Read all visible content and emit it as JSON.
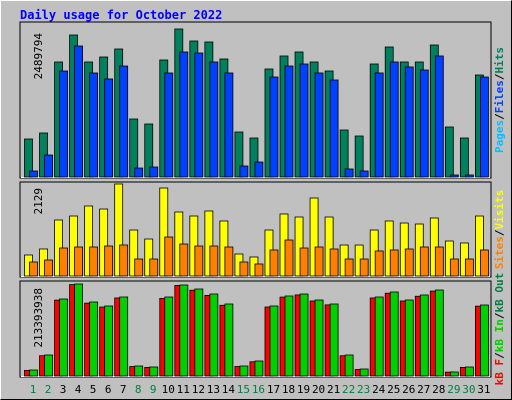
{
  "title": "Daily usage for October 2022",
  "categories": [
    "1",
    "2",
    "3",
    "4",
    "5",
    "6",
    "7",
    "8",
    "9",
    "10",
    "11",
    "12",
    "13",
    "14",
    "15",
    "16",
    "17",
    "18",
    "19",
    "20",
    "21",
    "22",
    "23",
    "24",
    "25",
    "26",
    "27",
    "28",
    "29",
    "30",
    "31"
  ],
  "weekend_categories": [
    "1",
    "2",
    "8",
    "9",
    "15",
    "16",
    "22",
    "23",
    "29",
    "30"
  ],
  "weekend_color": "#008040",
  "separator": "/",
  "chart_data": [
    {
      "type": "bar",
      "ylim": [
        0,
        2489794
      ],
      "series": [
        {
          "name": "Pages",
          "color": "#00c0ff"
        },
        {
          "name": "Files",
          "color": "#0040ff",
          "values": [
            101000,
            370000,
            1783000,
            2204000,
            1750000,
            1649000,
            1867000,
            151000,
            168000,
            1750000,
            2103000,
            2086000,
            1935000,
            1750000,
            185000,
            252000,
            1682000,
            1867000,
            1901000,
            1750000,
            1632000,
            135000,
            101000,
            1750000,
            1935000,
            1851000,
            1800000,
            2036000,
            34000,
            34000,
            1682000
          ]
        },
        {
          "name": "Hits",
          "color": "#00805c",
          "values": [
            639282,
            740212,
            1934645,
            2388866,
            1934645,
            2018765,
            2153353,
            975734,
            891624,
            1968292,
            2489794,
            2287924,
            2271101,
            1985118,
            757035,
            656097,
            1816882,
            2035588,
            2102882,
            1934645,
            1783235,
            790682,
            689743,
            1901000,
            2187000,
            1934645,
            1934645,
            2220630,
            841177,
            656097,
            1715943
          ]
        }
      ]
    },
    {
      "type": "bar",
      "ylim": [
        0,
        2129
      ],
      "series": [
        {
          "name": "Sites",
          "color": "#ff8000",
          "values": [
            324,
            370,
            648,
            671,
            671,
            694,
            717,
            393,
            393,
            902,
            740,
            694,
            694,
            671,
            324,
            278,
            602,
            833,
            648,
            671,
            625,
            393,
            393,
            579,
            602,
            625,
            671,
            671,
            393,
            393,
            602
          ]
        },
        {
          "name": "Visits",
          "color": "#ffff00",
          "values": [
            486,
            625,
            1296,
            1388,
            1620,
            1550,
            2129,
            1064,
            856,
            2036,
            1481,
            1388,
            1504,
            1273,
            509,
            440,
            1064,
            1435,
            1365,
            1805,
            1365,
            717,
            717,
            1064,
            1273,
            1226,
            1203,
            1342,
            810,
            764,
            1388
          ]
        }
      ]
    },
    {
      "type": "bar",
      "ylim": [
        0,
        213393938
      ],
      "series": [
        {
          "name": "kB F",
          "color": "#ff0000",
          "values": [
            13000000,
            47000000,
            176000000,
            212000000,
            169000000,
            160000000,
            181000000,
            22000000,
            20000000,
            180000000,
            210000000,
            199000000,
            187000000,
            164000000,
            22000000,
            33000000,
            160000000,
            183000000,
            188000000,
            174000000,
            165000000,
            47000000,
            15000000,
            181000000,
            192000000,
            174000000,
            185000000,
            197000000,
            9000000,
            20000000,
            162000000
          ]
        },
        {
          "name": "kB In",
          "color": "#00d000",
          "values": [
            13917000,
            48709000,
            178601000,
            213393938,
            171643000,
            162365000,
            183241000,
            23195000,
            20876000,
            183241000,
            211074000,
            201797000,
            190199000,
            167004000,
            23195000,
            34792000,
            162365000,
            185560000,
            190199000,
            176282000,
            167004000,
            48709000,
            16236000,
            183241000,
            194838000,
            176282000,
            187880000,
            199477000,
            9278000,
            20876000,
            164684000
          ]
        },
        {
          "name": "kB Out",
          "color": "#008040"
        }
      ]
    }
  ]
}
